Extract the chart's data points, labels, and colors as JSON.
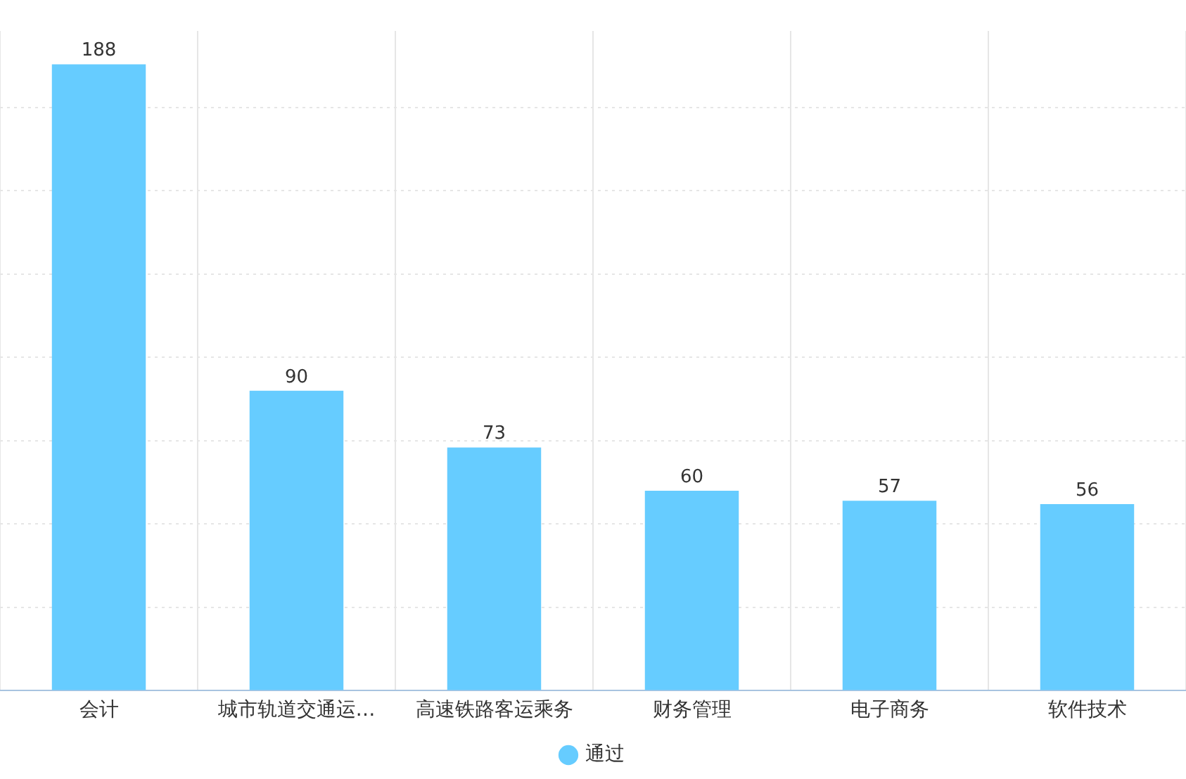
{
  "chart_data": {
    "type": "bar",
    "categories": [
      "会计",
      "城市轨道交通运…",
      "高速铁路客运乘务",
      "财务管理",
      "电子商务",
      "软件技术"
    ],
    "series": [
      {
        "name": "通过",
        "color": "#66ccff",
        "values": [
          188,
          90,
          73,
          60,
          57,
          56
        ]
      }
    ],
    "ylim": [
      0,
      198
    ],
    "yticks": [
      {
        "value": 0,
        "label": null
      },
      {
        "value": 25,
        "label": null
      },
      {
        "value": 50,
        "label": null
      },
      {
        "value": 75,
        "label": null
      },
      {
        "value": 100,
        "label": null
      },
      {
        "value": 125,
        "label": null
      },
      {
        "value": 150,
        "label": null
      },
      {
        "value": 175,
        "label": null
      }
    ],
    "grid": true,
    "legend": "bottom",
    "data_labels": true,
    "tick_labels": "x"
  }
}
